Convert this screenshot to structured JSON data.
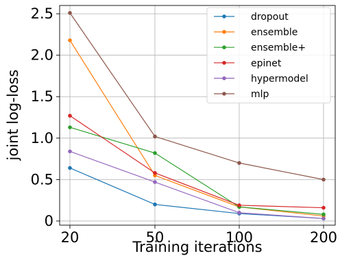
{
  "chart_data": {
    "type": "line",
    "x": [
      20,
      50,
      100,
      200
    ],
    "x_tick_labels": [
      "20",
      "50",
      "100",
      "200"
    ],
    "x_scale": "categorical",
    "y_ticks": [
      0,
      0.5,
      1.0,
      1.5,
      2.0,
      2.5
    ],
    "y_tick_labels": [
      "0",
      "0.5",
      "1.0",
      "1.5",
      "2.0",
      "2.5"
    ],
    "ylim": [
      -0.05,
      2.6
    ],
    "xlabel": "Training iterations",
    "ylabel": "joint log-loss",
    "grid": true,
    "legend_position": "top-right",
    "series": [
      {
        "name": "dropout",
        "color": "#1f77b4",
        "values": [
          0.64,
          0.2,
          0.09,
          0.03
        ]
      },
      {
        "name": "ensemble",
        "color": "#ff7f0e",
        "values": [
          2.18,
          0.55,
          0.17,
          0.06
        ]
      },
      {
        "name": "ensemble+",
        "color": "#2ca02c",
        "values": [
          1.13,
          0.82,
          0.17,
          0.08
        ]
      },
      {
        "name": "epinet",
        "color": "#d62728",
        "values": [
          1.27,
          0.58,
          0.19,
          0.16
        ]
      },
      {
        "name": "hypermodel",
        "color": "#9467bd",
        "values": [
          0.84,
          0.47,
          0.1,
          0.03
        ]
      },
      {
        "name": "mlp",
        "color": "#8c564b",
        "values": [
          2.51,
          1.02,
          0.7,
          0.5
        ]
      }
    ]
  }
}
